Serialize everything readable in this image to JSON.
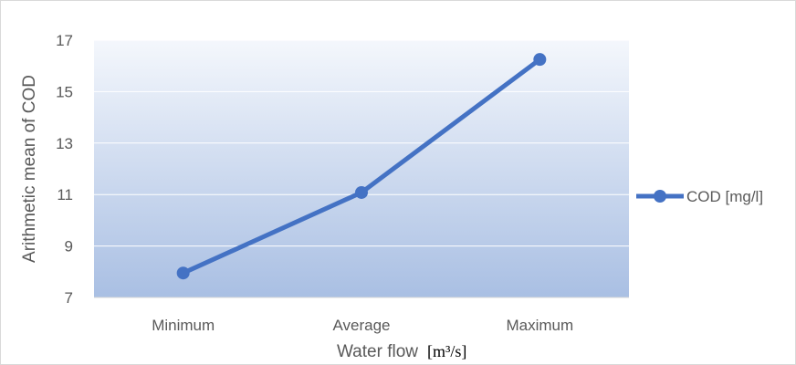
{
  "chart_data": {
    "type": "line",
    "categories": [
      "Minimum",
      "Average",
      "Maximum"
    ],
    "series": [
      {
        "name": "COD [mg/l]",
        "values": [
          7.95,
          11.08,
          16.25
        ],
        "color": "#4472c4"
      }
    ],
    "title": "",
    "xlabel": "Water flow",
    "xlabel_unit_math": "[m³/s]",
    "ylabel": "Arithmetic mean of COD",
    "ylim": [
      7,
      17
    ],
    "yticks": [
      7,
      9,
      11,
      13,
      15,
      17
    ],
    "grid": "horizontal",
    "legend_position": "right",
    "plot_background": "gradient-light-blue"
  }
}
